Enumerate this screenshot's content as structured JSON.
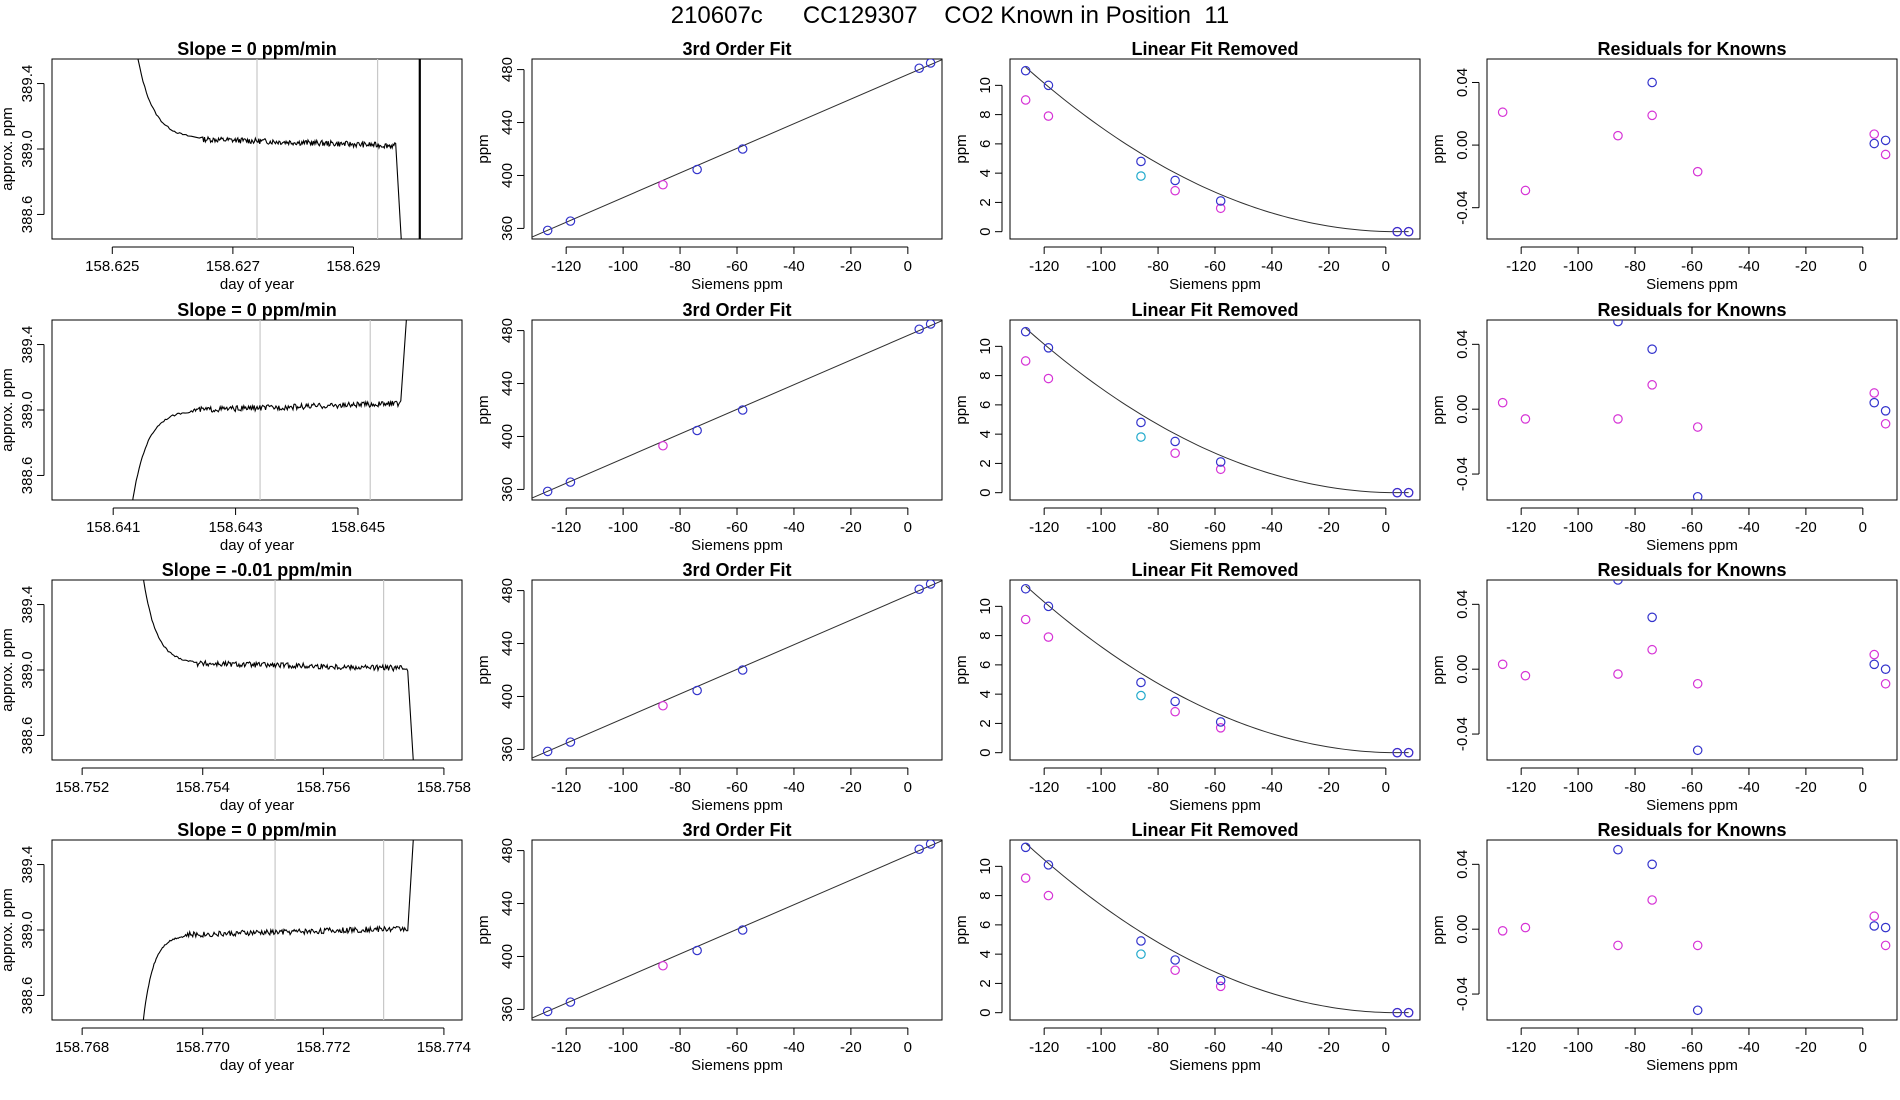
{
  "figure": {
    "title": "210607c      CC129307    CO2 Known in Position  11"
  },
  "colors": {
    "axis": "#000000",
    "trace": "#000000",
    "vline": "#c8c8c8",
    "fit_line": "#303030",
    "blue": "#3333cc",
    "magenta": "#d633d6",
    "cyan": "#22aacc",
    "dark_red": "#b03030"
  },
  "chart_data": [
    {
      "type": "line",
      "row": 0,
      "col": 0,
      "title": "Slope =  0  ppm/min",
      "xlabel": "day of year",
      "ylabel": "approx. ppm",
      "xlim": [
        158.624,
        158.6308
      ],
      "ylim": [
        388.45,
        389.55
      ],
      "xticks": [
        158.625,
        158.627,
        158.629
      ],
      "xtick_labels": [
        "158.625",
        "158.627",
        "158.629"
      ],
      "yticks": [
        388.6,
        389.0,
        389.4
      ],
      "ytick_labels": [
        "388.6",
        "389.0",
        "389.4"
      ],
      "vlines": [
        158.6274,
        158.6294
      ],
      "thick_vline": 158.6301,
      "trace": {
        "shape": "decay",
        "start": 158.6254,
        "plateau_start": 158.6265,
        "plateau_end": 158.6297,
        "end": 158.6298,
        "level": 389.06,
        "drift": -0.04,
        "start_value": 389.6,
        "end_value": 388.4
      }
    },
    {
      "type": "line",
      "row": 0,
      "col": 1,
      "title": "3rd Order Fit",
      "xlabel": "Siemens ppm",
      "ylabel": "ppm",
      "xlim": [
        -132,
        12
      ],
      "ylim": [
        352,
        488
      ],
      "xticks": [
        -120,
        -100,
        -80,
        -60,
        -40,
        -20,
        0
      ],
      "xtick_labels": [
        "-120",
        "-100",
        "-80",
        "-60",
        "-40",
        "-20",
        "0"
      ],
      "yticks": [
        360,
        400,
        440,
        480
      ],
      "ytick_labels": [
        "360",
        "400",
        "440",
        "480"
      ],
      "line": {
        "x": [
          -132,
          12
        ],
        "y": [
          353.5,
          487.5
        ]
      },
      "points_blue": {
        "x": [
          -126.5,
          -118.5,
          -74,
          -58,
          4,
          8
        ],
        "y": [
          358.5,
          365.5,
          404.5,
          420,
          481,
          485
        ]
      },
      "points_magenta": {
        "x": [
          -86
        ],
        "y": [
          393
        ]
      }
    },
    {
      "type": "line",
      "row": 0,
      "col": 2,
      "title": "Linear Fit Removed",
      "xlabel": "Siemens ppm",
      "ylabel": "ppm",
      "xlim": [
        -132,
        12
      ],
      "ylim": [
        -0.5,
        11.8
      ],
      "xticks": [
        -120,
        -100,
        -80,
        -60,
        -40,
        -20,
        0
      ],
      "xtick_labels": [
        "-120",
        "-100",
        "-80",
        "-60",
        "-40",
        "-20",
        "0"
      ],
      "yticks": [
        0,
        2,
        4,
        6,
        8,
        10
      ],
      "ytick_labels": [
        "0",
        "2",
        "4",
        "6",
        "8",
        "10"
      ],
      "curve": {
        "x0": 4,
        "a": 0.00066,
        "from": -126.5,
        "to": 8
      },
      "points_blue": {
        "x": [
          -126.5,
          -118.5,
          -86,
          -74,
          -58,
          4,
          8
        ],
        "y": [
          11.0,
          10.0,
          4.8,
          3.5,
          2.1,
          0,
          0
        ]
      },
      "points_magenta": {
        "x": [
          -126.5,
          -118.5,
          -74,
          -58,
          4,
          8
        ],
        "y": [
          9.0,
          7.9,
          2.8,
          1.6,
          0,
          0
        ]
      },
      "points_cyan": {
        "x": [
          -86
        ],
        "y": [
          3.8
        ]
      }
    },
    {
      "type": "scatter",
      "row": 0,
      "col": 3,
      "title": "Residuals for Knowns",
      "xlabel": "Siemens ppm",
      "ylabel": "ppm",
      "xlim": [
        -132,
        12
      ],
      "ylim": [
        -0.06,
        0.055
      ],
      "xticks": [
        -120,
        -100,
        -80,
        -60,
        -40,
        -20,
        0
      ],
      "xtick_labels": [
        "-120",
        "-100",
        "-80",
        "-60",
        "-40",
        "-20",
        "0"
      ],
      "yticks": [
        -0.04,
        0.0,
        0.04
      ],
      "ytick_labels": [
        "-0.04",
        "0.00",
        "0.04"
      ],
      "points_blue": {
        "x": [
          -74,
          4,
          8
        ],
        "y": [
          0.04,
          0.001,
          0.003
        ]
      },
      "points_magenta": {
        "x": [
          -126.5,
          -118.5,
          -86,
          -74,
          -58,
          4,
          8
        ],
        "y": [
          0.021,
          -0.029,
          0.006,
          0.019,
          -0.017,
          0.007,
          -0.006
        ]
      }
    },
    {
      "type": "line",
      "row": 1,
      "col": 0,
      "title": "Slope =  0  ppm/min",
      "xlabel": "day of year",
      "ylabel": "approx. ppm",
      "xlim": [
        158.64,
        158.6467
      ],
      "ylim": [
        388.45,
        389.55
      ],
      "xticks": [
        158.641,
        158.643,
        158.645
      ],
      "xtick_labels": [
        "158.641",
        "158.643",
        "158.645"
      ],
      "yticks": [
        388.6,
        389.0,
        389.4
      ],
      "ytick_labels": [
        "388.6",
        "389.0",
        "389.4"
      ],
      "vlines": [
        158.6434,
        158.6452
      ],
      "trace": {
        "shape": "rise",
        "start": 158.6413,
        "plateau_start": 158.6423,
        "plateau_end": 158.6457,
        "end": 158.6458,
        "level": 389.0,
        "drift": 0.04,
        "start_value": 388.4,
        "end_value": 389.6
      }
    },
    {
      "type": "line",
      "row": 1,
      "col": 1,
      "title": "3rd Order Fit",
      "xlabel": "Siemens ppm",
      "ylabel": "ppm",
      "xlim": [
        -132,
        12
      ],
      "ylim": [
        352,
        488
      ],
      "xticks": [
        -120,
        -100,
        -80,
        -60,
        -40,
        -20,
        0
      ],
      "xtick_labels": [
        "-120",
        "-100",
        "-80",
        "-60",
        "-40",
        "-20",
        "0"
      ],
      "yticks": [
        360,
        400,
        440,
        480
      ],
      "ytick_labels": [
        "360",
        "400",
        "440",
        "480"
      ],
      "line": {
        "x": [
          -132,
          12
        ],
        "y": [
          353.5,
          487.5
        ]
      },
      "points_blue": {
        "x": [
          -126.5,
          -118.5,
          -74,
          -58,
          4,
          8
        ],
        "y": [
          358.5,
          365.5,
          404.5,
          420,
          481,
          485
        ]
      },
      "points_magenta": {
        "x": [
          -86
        ],
        "y": [
          393
        ]
      }
    },
    {
      "type": "line",
      "row": 1,
      "col": 2,
      "title": "Linear Fit Removed",
      "xlabel": "Siemens ppm",
      "ylabel": "ppm",
      "xlim": [
        -132,
        12
      ],
      "ylim": [
        -0.5,
        11.8
      ],
      "xticks": [
        -120,
        -100,
        -80,
        -60,
        -40,
        -20,
        0
      ],
      "xtick_labels": [
        "-120",
        "-100",
        "-80",
        "-60",
        "-40",
        "-20",
        "0"
      ],
      "yticks": [
        0,
        2,
        4,
        6,
        8,
        10
      ],
      "ytick_labels": [
        "0",
        "2",
        "4",
        "6",
        "8",
        "10"
      ],
      "curve": {
        "x0": 4,
        "a": 0.00066,
        "from": -126.5,
        "to": 8
      },
      "points_blue": {
        "x": [
          -126.5,
          -118.5,
          -86,
          -74,
          -58,
          4,
          8
        ],
        "y": [
          11.0,
          9.9,
          4.8,
          3.5,
          2.1,
          0,
          0
        ]
      },
      "points_magenta": {
        "x": [
          -126.5,
          -118.5,
          -74,
          -58,
          4,
          8
        ],
        "y": [
          9.0,
          7.8,
          2.7,
          1.6,
          0,
          0
        ]
      },
      "points_cyan": {
        "x": [
          -86
        ],
        "y": [
          3.8
        ]
      }
    },
    {
      "type": "scatter",
      "row": 1,
      "col": 3,
      "title": "Residuals for Knowns",
      "xlabel": "Siemens ppm",
      "ylabel": "ppm",
      "xlim": [
        -132,
        12
      ],
      "ylim": [
        -0.056,
        0.055
      ],
      "xticks": [
        -120,
        -100,
        -80,
        -60,
        -40,
        -20,
        0
      ],
      "xtick_labels": [
        "-120",
        "-100",
        "-80",
        "-60",
        "-40",
        "-20",
        "0"
      ],
      "yticks": [
        -0.04,
        0.0,
        0.04
      ],
      "ytick_labels": [
        "-0.04",
        "0.00",
        "0.04"
      ],
      "points_blue": {
        "x": [
          -86,
          -74,
          -58,
          4,
          8
        ],
        "y": [
          0.054,
          0.037,
          -0.054,
          0.004,
          -0.001
        ]
      },
      "points_magenta": {
        "x": [
          -126.5,
          -118.5,
          -86,
          -74,
          -58,
          4,
          8
        ],
        "y": [
          0.004,
          -0.006,
          -0.006,
          0.015,
          -0.011,
          0.01,
          -0.009
        ]
      }
    },
    {
      "type": "line",
      "row": 2,
      "col": 0,
      "title": "Slope =  -0.01  ppm/min",
      "xlabel": "day of year",
      "ylabel": "approx. ppm",
      "xlim": [
        158.7515,
        158.7583
      ],
      "ylim": [
        388.45,
        389.55
      ],
      "xticks": [
        158.752,
        158.754,
        158.756,
        158.758
      ],
      "xtick_labels": [
        "158.752",
        "158.754",
        "158.756",
        "158.758"
      ],
      "yticks": [
        388.6,
        389.0,
        389.4
      ],
      "ytick_labels": [
        "388.6",
        "389.0",
        "389.4"
      ],
      "vlines": [
        158.7552,
        158.757
      ],
      "trace": {
        "shape": "decay",
        "start": 158.753,
        "plateau_start": 158.7539,
        "plateau_end": 158.7574,
        "end": 158.7575,
        "level": 389.04,
        "drift": -0.03,
        "start_value": 389.6,
        "end_value": 388.4
      }
    },
    {
      "type": "line",
      "row": 2,
      "col": 1,
      "title": "3rd Order Fit",
      "xlabel": "Siemens ppm",
      "ylabel": "ppm",
      "xlim": [
        -132,
        12
      ],
      "ylim": [
        352,
        488
      ],
      "xticks": [
        -120,
        -100,
        -80,
        -60,
        -40,
        -20,
        0
      ],
      "xtick_labels": [
        "-120",
        "-100",
        "-80",
        "-60",
        "-40",
        "-20",
        "0"
      ],
      "yticks": [
        360,
        400,
        440,
        480
      ],
      "ytick_labels": [
        "360",
        "400",
        "440",
        "480"
      ],
      "line": {
        "x": [
          -132,
          12
        ],
        "y": [
          353.5,
          487.5
        ]
      },
      "points_blue": {
        "x": [
          -126.5,
          -118.5,
          -74,
          -58,
          4,
          8
        ],
        "y": [
          358.5,
          365.5,
          404.5,
          420,
          481,
          485
        ]
      },
      "points_magenta": {
        "x": [
          -86
        ],
        "y": [
          393
        ]
      }
    },
    {
      "type": "line",
      "row": 2,
      "col": 2,
      "title": "Linear Fit Removed",
      "xlabel": "Siemens ppm",
      "ylabel": "ppm",
      "xlim": [
        -132,
        12
      ],
      "ylim": [
        -0.5,
        11.8
      ],
      "xticks": [
        -120,
        -100,
        -80,
        -60,
        -40,
        -20,
        0
      ],
      "xtick_labels": [
        "-120",
        "-100",
        "-80",
        "-60",
        "-40",
        "-20",
        "0"
      ],
      "yticks": [
        0,
        2,
        4,
        6,
        8,
        10
      ],
      "ytick_labels": [
        "0",
        "2",
        "4",
        "6",
        "8",
        "10"
      ],
      "curve": {
        "x0": 4,
        "a": 0.00067,
        "from": -126.5,
        "to": 8
      },
      "points_blue": {
        "x": [
          -126.5,
          -118.5,
          -86,
          -74,
          -58,
          4,
          8
        ],
        "y": [
          11.2,
          10.0,
          4.8,
          3.5,
          2.1,
          0,
          0
        ]
      },
      "points_magenta": {
        "x": [
          -126.5,
          -118.5,
          -74,
          -58,
          4,
          8
        ],
        "y": [
          9.1,
          7.9,
          2.8,
          1.7,
          0,
          0
        ]
      },
      "points_cyan": {
        "x": [
          -86
        ],
        "y": [
          3.9
        ]
      }
    },
    {
      "type": "scatter",
      "row": 2,
      "col": 3,
      "title": "Residuals for Knowns",
      "xlabel": "Siemens ppm",
      "ylabel": "ppm",
      "xlim": [
        -132,
        12
      ],
      "ylim": [
        -0.056,
        0.055
      ],
      "xticks": [
        -120,
        -100,
        -80,
        -60,
        -40,
        -20,
        0
      ],
      "xtick_labels": [
        "-120",
        "-100",
        "-80",
        "-60",
        "-40",
        "-20",
        "0"
      ],
      "yticks": [
        -0.04,
        0.0,
        0.04
      ],
      "ytick_labels": [
        "-0.04",
        "0.00",
        "0.04"
      ],
      "points_blue": {
        "x": [
          -86,
          -74,
          -58,
          4,
          8
        ],
        "y": [
          0.055,
          0.032,
          -0.05,
          0.003,
          0.0
        ]
      },
      "points_magenta": {
        "x": [
          -126.5,
          -118.5,
          -86,
          -74,
          -58,
          4,
          8
        ],
        "y": [
          0.003,
          -0.004,
          -0.003,
          0.012,
          -0.009,
          0.009,
          -0.009
        ]
      }
    },
    {
      "type": "line",
      "row": 3,
      "col": 0,
      "title": "Slope =  0  ppm/min",
      "xlabel": "day of year",
      "ylabel": "approx. ppm",
      "xlim": [
        158.7675,
        158.7743
      ],
      "ylim": [
        388.45,
        389.55
      ],
      "xticks": [
        158.768,
        158.77,
        158.772,
        158.774
      ],
      "xtick_labels": [
        "158.768",
        "158.770",
        "158.772",
        "158.774"
      ],
      "yticks": [
        388.6,
        389.0,
        389.4
      ],
      "ytick_labels": [
        "388.6",
        "389.0",
        "389.4"
      ],
      "vlines": [
        158.7712,
        158.773
      ],
      "trace": {
        "shape": "rise",
        "start": 158.769,
        "plateau_start": 158.7697,
        "plateau_end": 158.7734,
        "end": 158.7735,
        "level": 388.97,
        "drift": 0.04,
        "start_value": 388.4,
        "end_value": 389.6
      }
    },
    {
      "type": "line",
      "row": 3,
      "col": 1,
      "title": "3rd Order Fit",
      "xlabel": "Siemens ppm",
      "ylabel": "ppm",
      "xlim": [
        -132,
        12
      ],
      "ylim": [
        352,
        488
      ],
      "xticks": [
        -120,
        -100,
        -80,
        -60,
        -40,
        -20,
        0
      ],
      "xtick_labels": [
        "-120",
        "-100",
        "-80",
        "-60",
        "-40",
        "-20",
        "0"
      ],
      "yticks": [
        360,
        400,
        440,
        480
      ],
      "ytick_labels": [
        "360",
        "400",
        "440",
        "480"
      ],
      "line": {
        "x": [
          -132,
          12
        ],
        "y": [
          353.5,
          487.5
        ]
      },
      "points_blue": {
        "x": [
          -126.5,
          -118.5,
          -74,
          -58,
          4,
          8
        ],
        "y": [
          358.5,
          365.5,
          404.5,
          420,
          481,
          485
        ]
      },
      "points_magenta": {
        "x": [
          -86
        ],
        "y": [
          393
        ]
      }
    },
    {
      "type": "line",
      "row": 3,
      "col": 2,
      "title": "Linear Fit Removed",
      "xlabel": "Siemens ppm",
      "ylabel": "ppm",
      "xlim": [
        -132,
        12
      ],
      "ylim": [
        -0.5,
        11.8
      ],
      "xticks": [
        -120,
        -100,
        -80,
        -60,
        -40,
        -20,
        0
      ],
      "xtick_labels": [
        "-120",
        "-100",
        "-80",
        "-60",
        "-40",
        "-20",
        "0"
      ],
      "yticks": [
        0,
        2,
        4,
        6,
        8,
        10
      ],
      "ytick_labels": [
        "0",
        "2",
        "4",
        "6",
        "8",
        "10"
      ],
      "curve": {
        "x0": 4,
        "a": 0.00068,
        "from": -126.5,
        "to": 8
      },
      "points_blue": {
        "x": [
          -126.5,
          -118.5,
          -86,
          -74,
          -58,
          4,
          8
        ],
        "y": [
          11.3,
          10.1,
          4.9,
          3.6,
          2.2,
          0,
          0
        ]
      },
      "points_magenta": {
        "x": [
          -126.5,
          -118.5,
          -74,
          -58,
          4,
          8
        ],
        "y": [
          9.2,
          8.0,
          2.9,
          1.8,
          0,
          0
        ]
      },
      "points_cyan": {
        "x": [
          -86
        ],
        "y": [
          4.0
        ]
      }
    },
    {
      "type": "scatter",
      "row": 3,
      "col": 3,
      "title": "Residuals for Knowns",
      "xlabel": "Siemens ppm",
      "ylabel": "ppm",
      "xlim": [
        -132,
        12
      ],
      "ylim": [
        -0.056,
        0.055
      ],
      "xticks": [
        -120,
        -100,
        -80,
        -60,
        -40,
        -20,
        0
      ],
      "xtick_labels": [
        "-120",
        "-100",
        "-80",
        "-60",
        "-40",
        "-20",
        "0"
      ],
      "yticks": [
        -0.04,
        0.0,
        0.04
      ],
      "ytick_labels": [
        "-0.04",
        "0.00",
        "0.04"
      ],
      "points_blue": {
        "x": [
          -86,
          -74,
          -58,
          4,
          8
        ],
        "y": [
          0.049,
          0.04,
          -0.05,
          0.002,
          0.001
        ]
      },
      "points_magenta": {
        "x": [
          -126.5,
          -118.5,
          -86,
          -74,
          -58,
          4,
          8
        ],
        "y": [
          -0.001,
          0.001,
          -0.01,
          0.018,
          -0.01,
          0.008,
          -0.01
        ]
      }
    }
  ]
}
